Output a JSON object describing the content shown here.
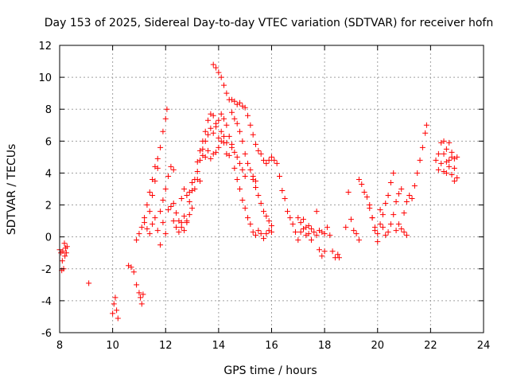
{
  "chart_data": {
    "type": "scatter",
    "title": "Day 153 of 2025, Sidereal Day-to-day VTEC variation (SDTVAR) for receiver hofn",
    "xlabel": "GPS time / hours",
    "ylabel": "SDTVAR / TECUs",
    "xlim": [
      8,
      24
    ],
    "ylim": [
      -6,
      12
    ],
    "xticks": [
      "8",
      "10",
      "12",
      "14",
      "16",
      "18",
      "20",
      "22",
      "24"
    ],
    "yticks": [
      "-6",
      "-4",
      "-2",
      "0",
      "2",
      "4",
      "6",
      "8",
      "10",
      "12"
    ],
    "grid": true,
    "marker": "+",
    "colors": {
      "series": "#ff0000",
      "grid": "#a0a0a0",
      "axes": "#000000"
    },
    "series": [
      {
        "name": "SDTVAR",
        "points": [
          [
            8.0,
            -0.8
          ],
          [
            8.05,
            -1.0
          ],
          [
            8.08,
            -2.1
          ],
          [
            8.1,
            -1.5
          ],
          [
            8.12,
            -0.9
          ],
          [
            8.15,
            -2.0
          ],
          [
            8.18,
            -0.4
          ],
          [
            8.2,
            -1.2
          ],
          [
            8.22,
            -0.7
          ],
          [
            8.25,
            -1.0
          ],
          [
            8.28,
            -0.6
          ],
          [
            9.1,
            -2.9
          ],
          [
            10.0,
            -4.8
          ],
          [
            10.05,
            -4.2
          ],
          [
            10.1,
            -3.8
          ],
          [
            10.15,
            -4.6
          ],
          [
            10.2,
            -5.1
          ],
          [
            10.6,
            -1.8
          ],
          [
            10.7,
            -1.9
          ],
          [
            10.8,
            -2.2
          ],
          [
            10.9,
            -3.0
          ],
          [
            11.0,
            -3.5
          ],
          [
            11.05,
            -3.8
          ],
          [
            11.1,
            -4.2
          ],
          [
            11.15,
            -3.6
          ],
          [
            10.9,
            -0.2
          ],
          [
            11.0,
            0.2
          ],
          [
            11.1,
            0.6
          ],
          [
            11.2,
            0.9
          ],
          [
            11.3,
            0.5
          ],
          [
            11.4,
            0.2
          ],
          [
            11.5,
            0.8
          ],
          [
            11.6,
            1.2
          ],
          [
            11.7,
            0.4
          ],
          [
            11.8,
            -0.5
          ],
          [
            11.9,
            0.9
          ],
          [
            12.0,
            0.2
          ],
          [
            11.4,
            1.6
          ],
          [
            11.5,
            2.6
          ],
          [
            11.6,
            3.5
          ],
          [
            11.7,
            4.3
          ],
          [
            11.8,
            5.6
          ],
          [
            11.9,
            6.6
          ],
          [
            12.0,
            7.4
          ],
          [
            12.05,
            8.0
          ],
          [
            11.2,
            1.2
          ],
          [
            11.3,
            2.0
          ],
          [
            11.4,
            2.8
          ],
          [
            11.5,
            3.6
          ],
          [
            11.6,
            4.4
          ],
          [
            11.7,
            4.9
          ],
          [
            11.8,
            1.6
          ],
          [
            11.9,
            2.3
          ],
          [
            12.0,
            3.0
          ],
          [
            12.1,
            3.8
          ],
          [
            12.2,
            4.4
          ],
          [
            12.3,
            4.2
          ],
          [
            12.1,
            1.7
          ],
          [
            12.2,
            1.9
          ],
          [
            12.3,
            2.1
          ],
          [
            12.4,
            1.5
          ],
          [
            12.5,
            1.0
          ],
          [
            12.6,
            0.6
          ],
          [
            12.7,
            0.4
          ],
          [
            12.8,
            0.9
          ],
          [
            12.3,
            1.0
          ],
          [
            12.4,
            0.6
          ],
          [
            12.5,
            0.3
          ],
          [
            12.6,
            0.9
          ],
          [
            12.7,
            1.3
          ],
          [
            12.8,
            1.0
          ],
          [
            12.9,
            1.4
          ],
          [
            13.0,
            1.8
          ],
          [
            12.6,
            2.4
          ],
          [
            12.7,
            3.0
          ],
          [
            12.8,
            2.6
          ],
          [
            12.9,
            2.8
          ],
          [
            13.0,
            3.4
          ],
          [
            13.1,
            3.0
          ],
          [
            13.2,
            3.6
          ],
          [
            13.3,
            3.5
          ],
          [
            12.9,
            2.2
          ],
          [
            13.0,
            2.9
          ],
          [
            13.1,
            3.6
          ],
          [
            13.2,
            4.1
          ],
          [
            13.3,
            4.8
          ],
          [
            13.4,
            5.1
          ],
          [
            13.5,
            5.0
          ],
          [
            13.6,
            5.4
          ],
          [
            13.7,
            4.9
          ],
          [
            13.8,
            5.2
          ],
          [
            13.9,
            5.3
          ],
          [
            14.0,
            5.6
          ],
          [
            14.1,
            6.0
          ],
          [
            14.2,
            6.3
          ],
          [
            14.3,
            5.9
          ],
          [
            13.2,
            4.7
          ],
          [
            13.3,
            5.4
          ],
          [
            13.4,
            6.0
          ],
          [
            13.5,
            6.6
          ],
          [
            13.6,
            7.3
          ],
          [
            13.7,
            7.7
          ],
          [
            13.8,
            7.6
          ],
          [
            13.9,
            7.1
          ],
          [
            14.0,
            7.3
          ],
          [
            14.1,
            7.7
          ],
          [
            14.2,
            7.4
          ],
          [
            14.3,
            7.0
          ],
          [
            14.4,
            6.3
          ],
          [
            14.5,
            5.8
          ],
          [
            13.4,
            5.5
          ],
          [
            13.5,
            6.0
          ],
          [
            13.6,
            6.4
          ],
          [
            13.7,
            6.8
          ],
          [
            13.8,
            6.5
          ],
          [
            13.9,
            6.9
          ],
          [
            14.0,
            6.2
          ],
          [
            14.1,
            6.6
          ],
          [
            14.2,
            5.9
          ],
          [
            14.3,
            5.2
          ],
          [
            14.4,
            5.1
          ],
          [
            14.5,
            5.6
          ],
          [
            14.6,
            5.3
          ],
          [
            14.7,
            5.0
          ],
          [
            14.8,
            4.6
          ],
          [
            14.9,
            4.2
          ],
          [
            15.0,
            3.8
          ],
          [
            13.8,
            10.8
          ],
          [
            13.9,
            10.6
          ],
          [
            14.0,
            10.3
          ],
          [
            14.1,
            10.0
          ],
          [
            14.2,
            9.5
          ],
          [
            14.3,
            9.0
          ],
          [
            14.4,
            8.6
          ],
          [
            14.5,
            8.6
          ],
          [
            14.6,
            8.5
          ],
          [
            14.7,
            8.3
          ],
          [
            14.8,
            8.4
          ],
          [
            14.9,
            8.2
          ],
          [
            15.0,
            8.1
          ],
          [
            15.1,
            7.6
          ],
          [
            15.2,
            7.0
          ],
          [
            15.3,
            6.4
          ],
          [
            15.4,
            5.8
          ],
          [
            15.5,
            5.4
          ],
          [
            15.6,
            5.2
          ],
          [
            15.7,
            4.8
          ],
          [
            15.8,
            4.6
          ],
          [
            15.9,
            4.8
          ],
          [
            16.0,
            5.0
          ],
          [
            16.1,
            4.8
          ],
          [
            16.2,
            4.6
          ],
          [
            14.5,
            7.8
          ],
          [
            14.6,
            7.4
          ],
          [
            14.7,
            7.1
          ],
          [
            14.8,
            6.6
          ],
          [
            14.9,
            6.0
          ],
          [
            15.0,
            5.2
          ],
          [
            15.1,
            4.6
          ],
          [
            15.2,
            4.2
          ],
          [
            15.3,
            3.8
          ],
          [
            15.4,
            3.5
          ],
          [
            14.6,
            4.3
          ],
          [
            14.7,
            3.6
          ],
          [
            14.8,
            3.0
          ],
          [
            14.9,
            2.3
          ],
          [
            15.0,
            1.8
          ],
          [
            15.1,
            1.2
          ],
          [
            15.2,
            0.8
          ],
          [
            15.3,
            0.3
          ],
          [
            15.4,
            0.1
          ],
          [
            15.5,
            0.4
          ],
          [
            15.6,
            0.2
          ],
          [
            15.7,
            -0.1
          ],
          [
            15.8,
            0.2
          ],
          [
            15.9,
            0.4
          ],
          [
            16.0,
            0.3
          ],
          [
            15.3,
            3.6
          ],
          [
            15.4,
            3.1
          ],
          [
            15.5,
            2.6
          ],
          [
            15.6,
            2.1
          ],
          [
            15.7,
            1.6
          ],
          [
            15.8,
            1.3
          ],
          [
            15.9,
            1.0
          ],
          [
            16.0,
            0.7
          ],
          [
            16.3,
            3.8
          ],
          [
            16.4,
            2.9
          ],
          [
            16.5,
            2.4
          ],
          [
            16.6,
            1.6
          ],
          [
            16.7,
            1.2
          ],
          [
            16.8,
            0.8
          ],
          [
            16.9,
            0.3
          ],
          [
            17.0,
            -0.2
          ],
          [
            17.1,
            0.3
          ],
          [
            17.2,
            0.5
          ],
          [
            17.3,
            0.1
          ],
          [
            17.4,
            0.2
          ],
          [
            17.5,
            -0.2
          ],
          [
            17.6,
            0.3
          ],
          [
            17.7,
            0.1
          ],
          [
            17.8,
            0.4
          ],
          [
            17.9,
            0.3
          ],
          [
            18.0,
            0.2
          ],
          [
            18.1,
            0.6
          ],
          [
            18.2,
            0.1
          ],
          [
            17.0,
            1.2
          ],
          [
            17.1,
            0.9
          ],
          [
            17.2,
            1.1
          ],
          [
            17.3,
            0.6
          ],
          [
            17.4,
            0.7
          ],
          [
            17.5,
            0.5
          ],
          [
            17.7,
            1.6
          ],
          [
            17.8,
            -0.8
          ],
          [
            17.9,
            -1.2
          ],
          [
            18.0,
            -0.9
          ],
          [
            18.3,
            -0.9
          ],
          [
            18.4,
            -1.3
          ],
          [
            18.5,
            -1.1
          ],
          [
            18.55,
            -1.3
          ],
          [
            18.8,
            0.6
          ],
          [
            18.9,
            2.8
          ],
          [
            19.0,
            1.1
          ],
          [
            19.1,
            0.4
          ],
          [
            19.2,
            0.2
          ],
          [
            19.3,
            -0.2
          ],
          [
            19.3,
            3.6
          ],
          [
            19.4,
            3.3
          ],
          [
            19.5,
            2.8
          ],
          [
            19.6,
            2.5
          ],
          [
            19.7,
            1.8
          ],
          [
            19.8,
            1.2
          ],
          [
            19.9,
            0.6
          ],
          [
            20.0,
            0.2
          ],
          [
            19.7,
            2.0
          ],
          [
            19.8,
            1.2
          ],
          [
            19.9,
            0.4
          ],
          [
            20.0,
            -0.3
          ],
          [
            20.1,
            0.8
          ],
          [
            20.2,
            1.4
          ],
          [
            20.3,
            2.1
          ],
          [
            20.4,
            2.6
          ],
          [
            20.5,
            3.4
          ],
          [
            20.6,
            4.0
          ],
          [
            20.1,
            1.7
          ],
          [
            20.2,
            0.6
          ],
          [
            20.3,
            0.1
          ],
          [
            20.4,
            0.3
          ],
          [
            20.5,
            0.8
          ],
          [
            20.6,
            1.4
          ],
          [
            20.7,
            2.2
          ],
          [
            20.8,
            2.7
          ],
          [
            20.9,
            3.0
          ],
          [
            20.7,
            0.4
          ],
          [
            20.8,
            0.8
          ],
          [
            20.9,
            0.5
          ],
          [
            21.0,
            0.3
          ],
          [
            21.1,
            0.1
          ],
          [
            21.0,
            1.5
          ],
          [
            21.1,
            2.2
          ],
          [
            21.2,
            2.6
          ],
          [
            21.3,
            2.4
          ],
          [
            21.4,
            3.2
          ],
          [
            21.5,
            4.0
          ],
          [
            21.6,
            4.8
          ],
          [
            21.7,
            5.6
          ],
          [
            21.8,
            6.5
          ],
          [
            21.85,
            7.0
          ],
          [
            22.2,
            4.8
          ],
          [
            22.3,
            5.2
          ],
          [
            22.4,
            5.9
          ],
          [
            22.5,
            6.0
          ],
          [
            22.6,
            5.5
          ],
          [
            22.7,
            5.9
          ],
          [
            22.8,
            5.0
          ],
          [
            22.9,
            4.3
          ],
          [
            22.3,
            4.2
          ],
          [
            22.4,
            4.6
          ],
          [
            22.5,
            5.2
          ],
          [
            22.6,
            4.7
          ],
          [
            22.7,
            4.4
          ],
          [
            22.8,
            3.9
          ],
          [
            22.9,
            3.5
          ],
          [
            23.0,
            3.7
          ],
          [
            22.5,
            4.1
          ],
          [
            22.6,
            4.0
          ],
          [
            22.7,
            4.8
          ],
          [
            22.8,
            5.3
          ],
          [
            22.9,
            4.9
          ],
          [
            23.0,
            5.0
          ]
        ]
      }
    ]
  }
}
